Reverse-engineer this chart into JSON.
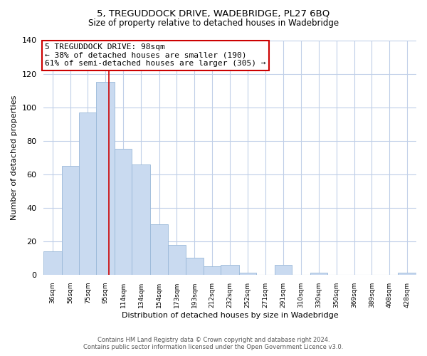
{
  "title": "5, TREGUDDOCK DRIVE, WADEBRIDGE, PL27 6BQ",
  "subtitle": "Size of property relative to detached houses in Wadebridge",
  "xlabel": "Distribution of detached houses by size in Wadebridge",
  "ylabel": "Number of detached properties",
  "bar_values": [
    14,
    65,
    97,
    115,
    75,
    66,
    30,
    18,
    10,
    5,
    6,
    1,
    0,
    6,
    0,
    1,
    0,
    0,
    0,
    0,
    1
  ],
  "bar_labels": [
    "36sqm",
    "56sqm",
    "75sqm",
    "95sqm",
    "114sqm",
    "134sqm",
    "154sqm",
    "173sqm",
    "193sqm",
    "212sqm",
    "232sqm",
    "252sqm",
    "271sqm",
    "291sqm",
    "310sqm",
    "330sqm",
    "350sqm",
    "369sqm",
    "389sqm",
    "408sqm",
    "428sqm"
  ],
  "bin_edges": [
    26.5,
    46.5,
    65.5,
    84.5,
    104.5,
    123.5,
    143.5,
    163.5,
    182.5,
    202.5,
    221.5,
    241.5,
    260.5,
    280.5,
    299.5,
    319.5,
    338.5,
    358.5,
    377.5,
    397.5,
    416.5,
    436.5
  ],
  "bar_color": "#c9daf0",
  "bar_edge_color": "#9ab8d8",
  "red_line_x": 98,
  "annotation_title": "5 TREGUDDOCK DRIVE: 98sqm",
  "annotation_line1": "← 38% of detached houses are smaller (190)",
  "annotation_line2": "61% of semi-detached houses are larger (305) →",
  "annotation_box_color": "#ffffff",
  "annotation_box_edge_color": "#cc0000",
  "red_line_color": "#cc0000",
  "ylim": [
    0,
    140
  ],
  "yticks": [
    0,
    20,
    40,
    60,
    80,
    100,
    120,
    140
  ],
  "footer_line1": "Contains HM Land Registry data © Crown copyright and database right 2024.",
  "footer_line2": "Contains public sector information licensed under the Open Government Licence v3.0.",
  "background_color": "#ffffff",
  "grid_color": "#c0cfe8"
}
